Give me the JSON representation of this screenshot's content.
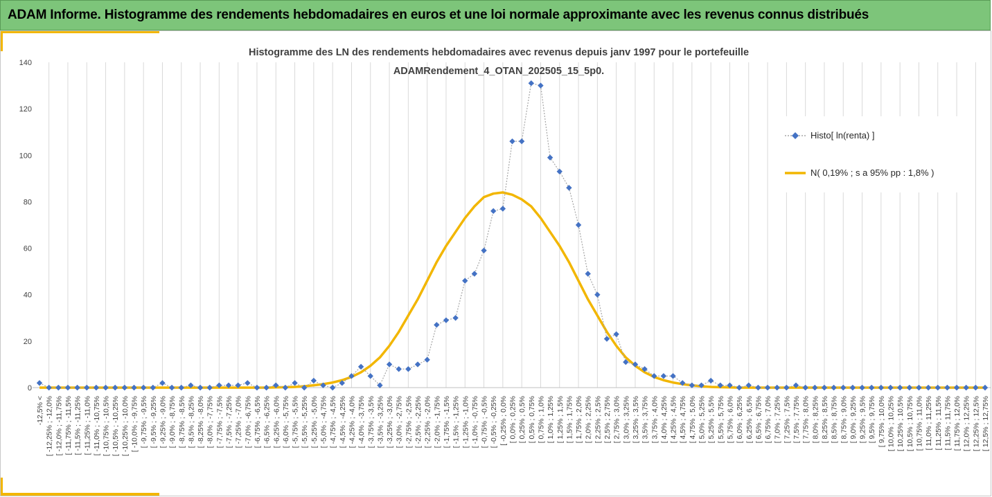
{
  "banner": {
    "title": "ADAM Informe. Histogramme des rendements hebdomadaires en euros et une loi normale approximante avec les revenus connus distribués"
  },
  "colors": {
    "banner_bg": "#7dc57a",
    "accent": "#f2b600",
    "histo_marker": "#4472c4",
    "histo_line": "#a5a5a5",
    "normal_line": "#f2b600",
    "grid": "#d9d9d9"
  },
  "chart_data": {
    "type": "line",
    "title_lines": [
      "Histogramme des LN des rendements hebdomadaires avec revenus depuis janv 1997 pour le portefeuille",
      "ADAMRendement_4_OTAN_202505_15_5p0."
    ],
    "xlabel": "",
    "ylabel": "",
    "ylim": [
      0,
      140
    ],
    "yticks": [
      0,
      20,
      40,
      60,
      80,
      100,
      120,
      140
    ],
    "grid": "vertical gridlines",
    "legend_position": "right",
    "categories": [
      "-12,5% <",
      "[ -12,25% ; -12,0%",
      "[ -12,0% ; -11,75%",
      "[ -11,75% ; -11,5%",
      "[ -11,5% ; -11,25%",
      "[ -11,25% ; -11,0%",
      "[ -11,0% ; -10,75%",
      "[ -10,75% ; -10,5%",
      "[ -10,5% ; -10,25%",
      "[ -10,25% ; -10,0%",
      "[ -10,0% ; -9,75%",
      "[ -9,75% ; -9,5%",
      "[ -9,5% ; -9,25%",
      "[ -9,25% ; -9,0%",
      "[ -9,0% ; -8,75%",
      "[ -8,75% ; -8,5%",
      "[ -8,5% ; -8,25%",
      "[ -8,25% ; -8,0%",
      "[ -8,0% ; -7,75%",
      "[ -7,75% ; -7,5%",
      "[ -7,5% ; -7,25%",
      "[ -7,25% ; -7,0%",
      "[ -7,0% ; -6,75%",
      "[ -6,75% ; -6,5%",
      "[ -6,5% ; -6,25%",
      "[ -6,25% ; -6,0%",
      "[ -6,0% ; -5,75%",
      "[ -5,75% ; -5,5%",
      "[ -5,5% ; -5,25%",
      "[ -5,25% ; -5,0%",
      "[ -5,0% ; -4,75%",
      "[ -4,75% ; -4,5%",
      "[ -4,5% ; -4,25%",
      "[ -4,25% ; -4,0%",
      "[ -4,0% ; -3,75%",
      "[ -3,75% ; -3,5%",
      "[ -3,5% ; -3,25%",
      "[ -3,25% ; -3,0%",
      "[ -3,0% ; -2,75%",
      "[ -2,75% ; -2,5%",
      "[ -2,5% ; -2,25%",
      "[ -2,25% ; -2,0%",
      "[ -2,0% ; -1,75%",
      "[ -1,75% ; -1,5%",
      "[ -1,5% ; -1,25%",
      "[ -1,25% ; -1,0%",
      "[ -1,0% ; -0,75%",
      "[ -0,75% ; -0,5%",
      "[ -0,5% ; -0,25%",
      "[ -0,25% ; 0,0%",
      "[ 0,0% ; 0,25%",
      "[ 0,25% ; 0,5%",
      "[ 0,5% ; 0,75%",
      "[ 0,75% ; 1,0%",
      "[ 1,0% ; 1,25%",
      "[ 1,25% ; 1,5%",
      "[ 1,5% ; 1,75%",
      "[ 1,75% ; 2,0%",
      "[ 2,0% ; 2,25%",
      "[ 2,25% ; 2,5%",
      "[ 2,5% ; 2,75%",
      "[ 2,75% ; 3,0%",
      "[ 3,0% ; 3,25%",
      "[ 3,25% ; 3,5%",
      "[ 3,5% ; 3,75%",
      "[ 3,75% ; 4,0%",
      "[ 4,0% ; 4,25%",
      "[ 4,25% ; 4,5%",
      "[ 4,5% ; 4,75%",
      "[ 4,75% ; 5,0%",
      "[ 5,0% ; 5,25%",
      "[ 5,25% ; 5,5%",
      "[ 5,5% ; 5,75%",
      "[ 5,75% ; 6,0%",
      "[ 6,0% ; 6,25%",
      "[ 6,25% ; 6,5%",
      "[ 6,5% ; 6,75%",
      "[ 6,75% ; 7,0%",
      "[ 7,0% ; 7,25%",
      "[ 7,25% ; 7,5%",
      "[ 7,5% ; 7,75%",
      "[ 7,75% ; 8,0%",
      "[ 8,0% ; 8,25%",
      "[ 8,25% ; 8,5%",
      "[ 8,5% ; 8,75%",
      "[ 8,75% ; 9,0%",
      "[ 9,0% ; 9,25%",
      "[ 9,25% ; 9,5%",
      "[ 9,5% ; 9,75%",
      "[ 9,75% ; 10,0%",
      "[ 10,0% ; 10,25%",
      "[ 10,25% ; 10,5%",
      "[ 10,5% ; 10,75%",
      "[ 10,75% ; 11,0%",
      "[ 11,0% ; 11,25%",
      "[ 11,25% ; 11,5%",
      "[ 11,5% ; 11,75%",
      "[ 11,75% ; 12,0%",
      "[ 12,0% ; 12,25%",
      "[ 12,25% ; 12,5%",
      "[ 12,5% ; 12,75%"
    ],
    "series": [
      {
        "name": "Histo[ ln(renta) ]",
        "type": "scatter-dotted-line",
        "values": [
          2,
          0,
          0,
          0,
          0,
          0,
          0,
          0,
          0,
          0,
          0,
          0,
          0,
          2,
          0,
          0,
          1,
          0,
          0,
          1,
          1,
          1,
          2,
          0,
          0,
          1,
          0,
          2,
          0,
          3,
          1,
          0,
          2,
          5,
          9,
          5,
          1,
          10,
          8,
          8,
          10,
          12,
          27,
          29,
          30,
          46,
          49,
          59,
          76,
          77,
          106,
          106,
          131,
          130,
          99,
          93,
          86,
          70,
          49,
          40,
          21,
          23,
          11,
          10,
          8,
          5,
          5,
          5,
          2,
          1,
          1,
          3,
          1,
          1,
          0,
          1,
          0,
          0,
          0,
          0,
          1,
          0,
          0,
          0,
          0,
          0,
          0,
          0,
          0,
          0,
          0,
          0,
          0,
          0,
          0,
          0,
          0,
          0,
          0,
          0,
          0
        ]
      },
      {
        "name": "N( 0,19% ; s a 95% pp : 1,8% )",
        "type": "line",
        "values": [
          0,
          0,
          0,
          0,
          0,
          0,
          0,
          0,
          0,
          0,
          0,
          0,
          0,
          0,
          0,
          0,
          0,
          0,
          0,
          0,
          0,
          0,
          0,
          0,
          0,
          0.1,
          0.2,
          0.3,
          0.6,
          1,
          1.5,
          2.2,
          3.2,
          4.6,
          6.6,
          9.4,
          13,
          18,
          24,
          31,
          38,
          46,
          54,
          61,
          67,
          73,
          78,
          82,
          83.5,
          84,
          83,
          81,
          78,
          73,
          67,
          61,
          54,
          46,
          38,
          31,
          24,
          18,
          13,
          9.4,
          6.6,
          4.6,
          3.2,
          2.2,
          1.5,
          1,
          0.6,
          0.3,
          0.2,
          0.1,
          0,
          0,
          0,
          0,
          0,
          0,
          0,
          0,
          0,
          0,
          0,
          0,
          0,
          0,
          0,
          0,
          0,
          0,
          0,
          0,
          0,
          0,
          0,
          0,
          0,
          0,
          0
        ]
      }
    ]
  }
}
